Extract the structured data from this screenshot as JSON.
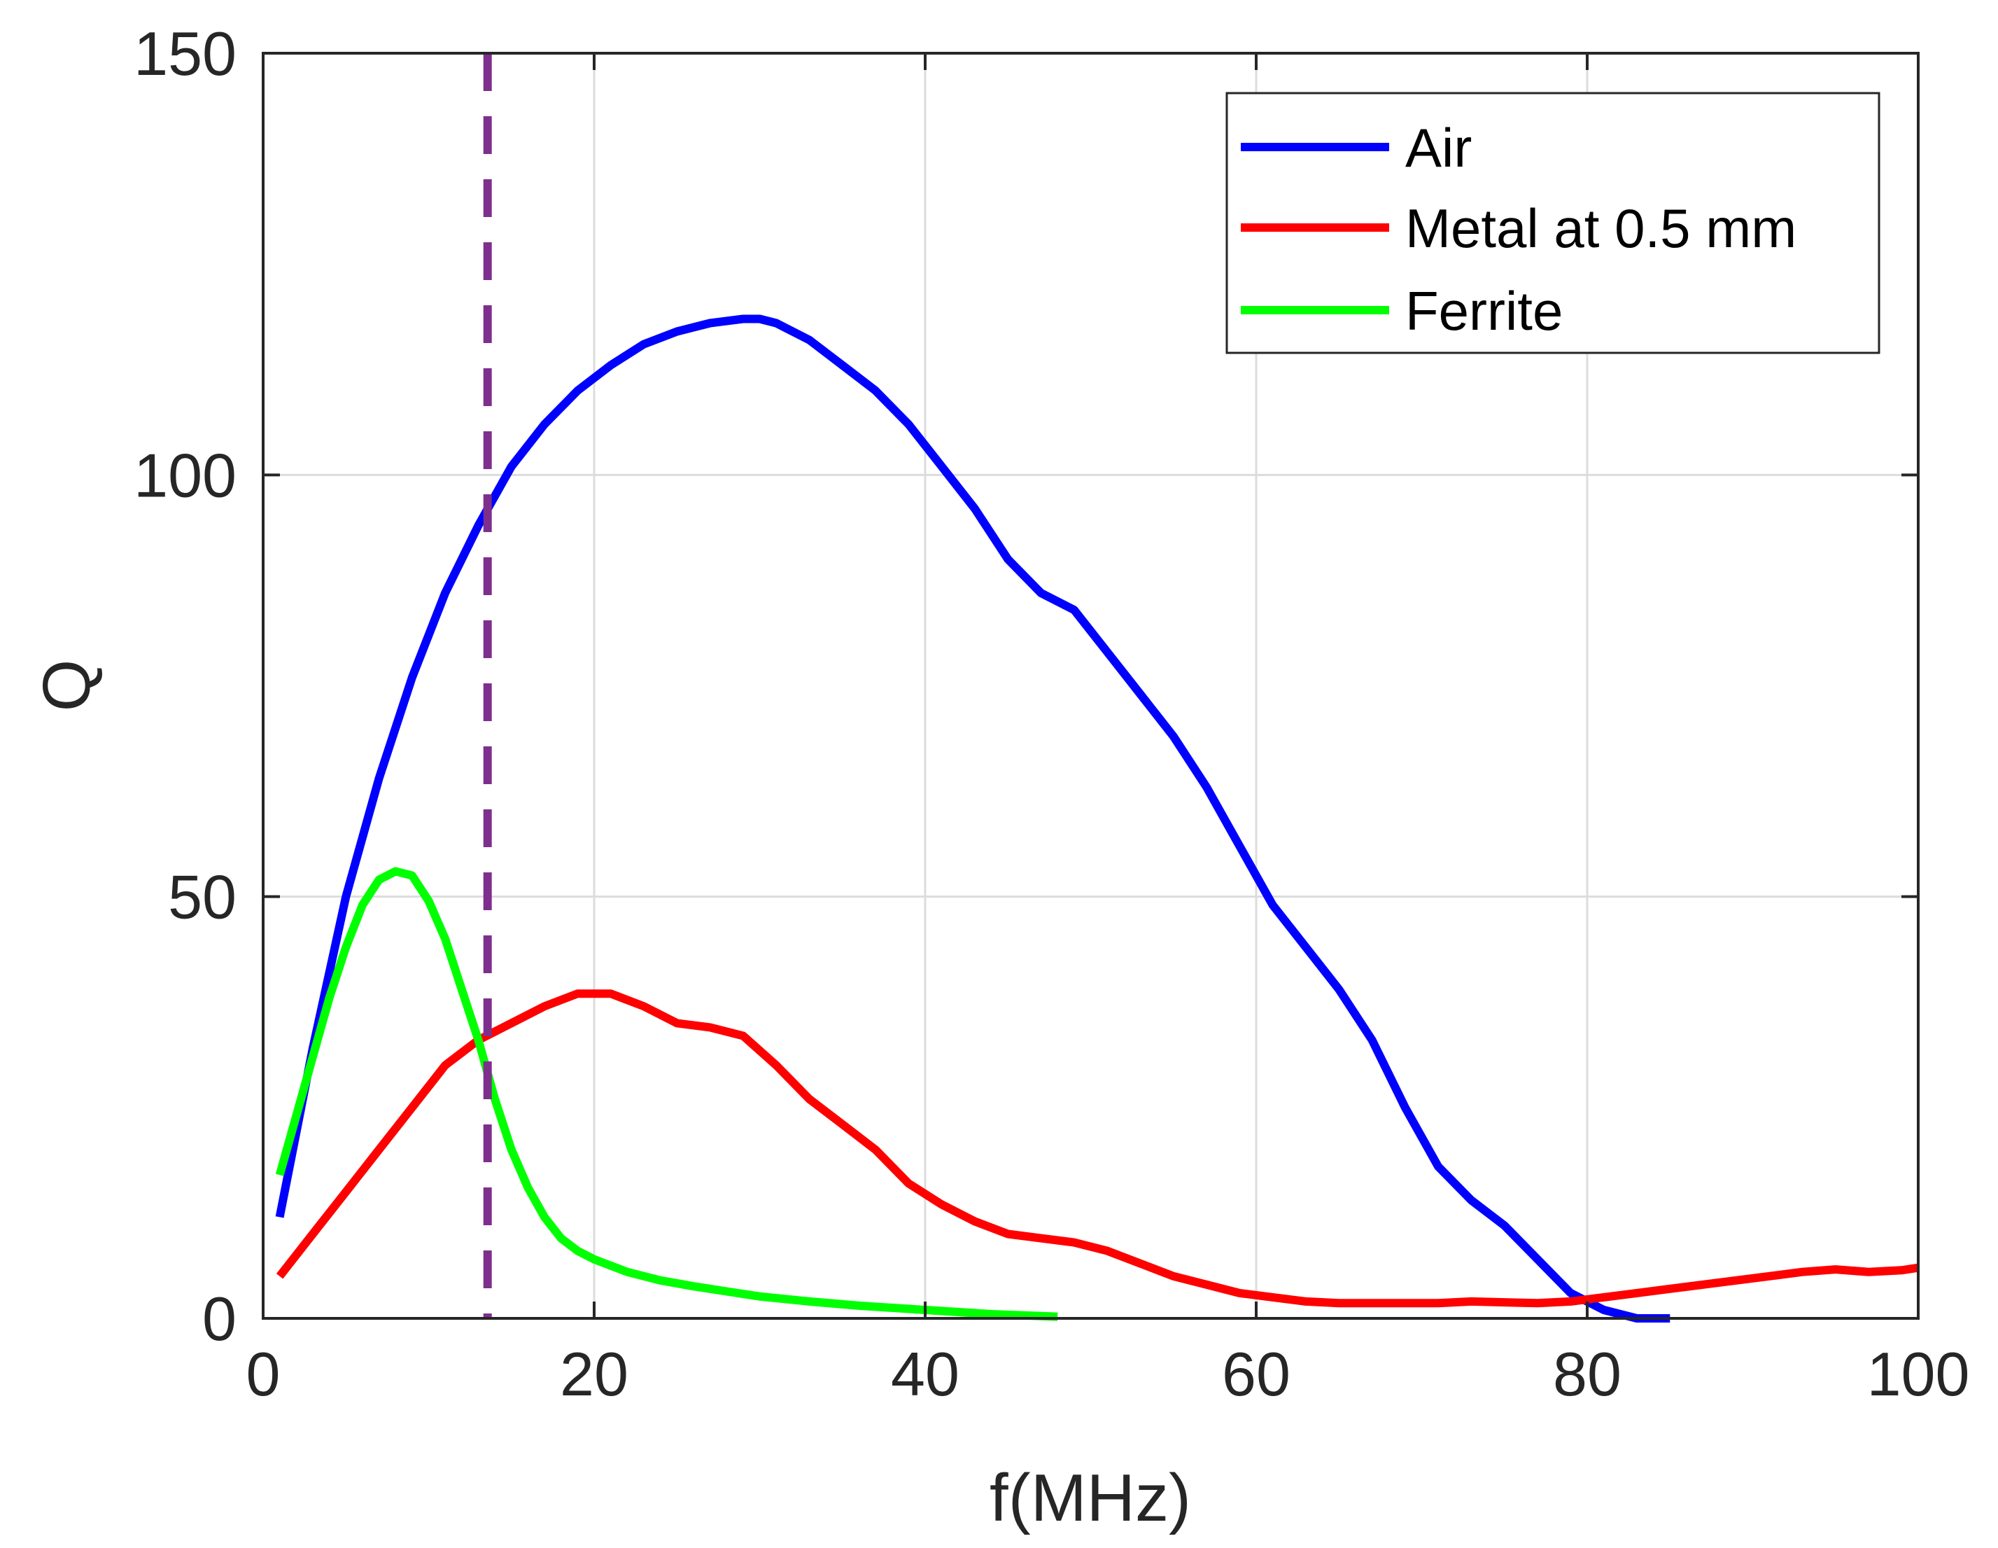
{
  "chart_data": {
    "type": "line",
    "title": "",
    "xlabel": "f(MHz)",
    "ylabel": "Q",
    "xlim": [
      0,
      100
    ],
    "ylim": [
      0,
      150
    ],
    "xticks": [
      0,
      20,
      40,
      60,
      80,
      100
    ],
    "yticks": [
      0,
      50,
      100,
      150
    ],
    "xtick_labels": [
      "0",
      "20",
      "40",
      "60",
      "80",
      "100"
    ],
    "ytick_labels": [
      "0",
      "50",
      "100",
      "150"
    ],
    "grid": true,
    "legend_position": "top-right",
    "reference_line": {
      "orientation": "vertical",
      "x": 13.56,
      "style": "dashed",
      "color": "#7e2f8e"
    },
    "series": [
      {
        "name": "Air",
        "color": "#0000ff",
        "x": [
          1,
          3,
          5,
          7,
          9,
          11,
          13,
          15,
          17,
          19,
          21,
          23,
          25,
          27,
          29,
          30,
          31,
          33,
          35,
          37,
          39,
          41,
          43,
          45,
          47,
          49,
          51,
          53,
          55,
          57,
          59,
          61,
          63,
          65,
          67,
          69,
          71,
          73,
          75,
          77,
          79,
          81,
          83,
          85
        ],
        "y": [
          12,
          32,
          50,
          64,
          76,
          86,
          94,
          101,
          106,
          110,
          113,
          115.5,
          117,
          118,
          118.5,
          118.5,
          118,
          116,
          113,
          110,
          106,
          101,
          96,
          90,
          86,
          84,
          79,
          74,
          69,
          63,
          56,
          49,
          44,
          39,
          33,
          25,
          18,
          14,
          11,
          7,
          3,
          1,
          0,
          0
        ]
      },
      {
        "name": "Metal at 0.5 mm",
        "color": "#ff0000",
        "x": [
          1,
          3,
          5,
          7,
          9,
          11,
          13,
          15,
          17,
          19,
          21,
          23,
          25,
          27,
          29,
          31,
          33,
          35,
          37,
          39,
          41,
          43,
          45,
          47,
          49,
          51,
          53,
          55,
          57,
          59,
          61,
          63,
          65,
          67,
          69,
          71,
          73,
          75,
          77,
          79,
          81,
          83,
          85,
          87,
          89,
          91,
          93,
          95,
          97,
          99,
          100
        ],
        "y": [
          5,
          10,
          15,
          20,
          25,
          30,
          33,
          35,
          37,
          38.5,
          38.5,
          37,
          35,
          34.5,
          33.5,
          30,
          26,
          23,
          20,
          16,
          13.5,
          11.5,
          10,
          9.5,
          9,
          8,
          6.5,
          5,
          4,
          3,
          2.5,
          2,
          1.8,
          1.8,
          1.8,
          1.8,
          2,
          1.9,
          1.8,
          2,
          2.5,
          3,
          3.5,
          4,
          4.5,
          5,
          5.5,
          5.8,
          5.5,
          5.7,
          6
        ]
      },
      {
        "name": "Ferrite",
        "color": "#00ff00",
        "x": [
          1,
          2,
          3,
          4,
          5,
          6,
          7,
          8,
          9,
          10,
          11,
          12,
          13,
          14,
          15,
          16,
          17,
          18,
          19,
          20,
          22,
          24,
          26,
          28,
          30,
          33,
          36,
          40,
          44,
          48
        ],
        "y": [
          17,
          24,
          31,
          38,
          44,
          49,
          52,
          53,
          52.5,
          49.5,
          45,
          39,
          33,
          26,
          20,
          15.5,
          12,
          9.5,
          8,
          7,
          5.5,
          4.5,
          3.8,
          3.2,
          2.6,
          2,
          1.5,
          1,
          0.5,
          0.2
        ]
      }
    ]
  }
}
